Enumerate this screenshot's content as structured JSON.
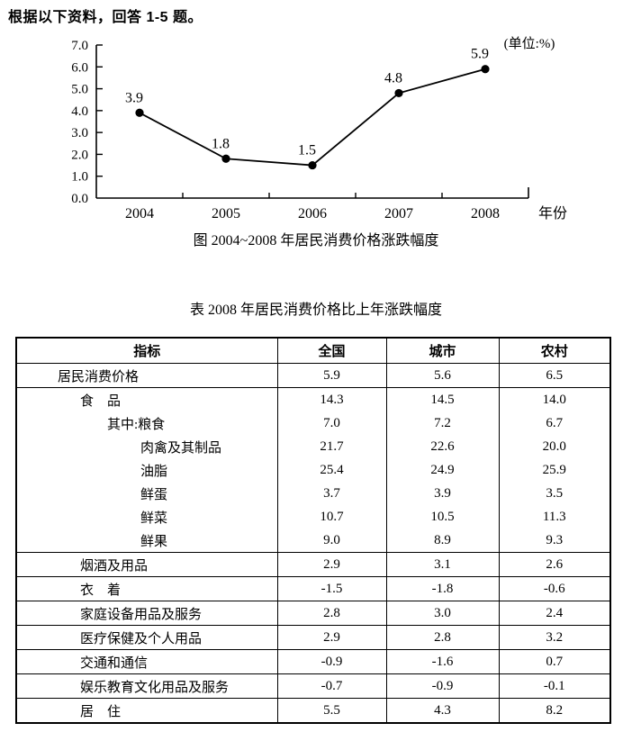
{
  "page": {
    "instruction": "根据以下资料，回答 1-5 题。"
  },
  "figure": {
    "caption": "图 2004~2008 年居民消费价格涨跌幅度"
  },
  "chart_data": {
    "type": "line",
    "title": "图 2004~2008 年居民消费价格涨跌幅度",
    "unit_label": "(单位:%)",
    "categories": [
      "2004",
      "2005",
      "2006",
      "2007",
      "2008"
    ],
    "series": [
      {
        "name": "居民消费价格涨跌幅度",
        "values": [
          3.9,
          1.8,
          1.5,
          4.8,
          5.9
        ]
      }
    ],
    "point_labels": [
      "3.9",
      "1.8",
      "1.5",
      "4.8",
      "5.9"
    ],
    "xlabel": "年份",
    "ylabel": "",
    "ylim": [
      0.0,
      7.0
    ],
    "ytick_step": 1.0,
    "ytick_labels": [
      "0.0",
      "1.0",
      "2.0",
      "3.0",
      "4.0",
      "5.0",
      "6.0",
      "7.0"
    ],
    "grid": false,
    "legend_position": "none",
    "line_color": "#000000",
    "marker": "filled-circle"
  },
  "table": {
    "title": "表 2008 年居民消费价格比上年涨跌幅度",
    "columns": [
      "指标",
      "全国",
      "城市",
      "农村"
    ],
    "rows": [
      {
        "label": "居民消费价格",
        "indent": 1,
        "divider": true,
        "values": [
          "5.9",
          "5.6",
          "6.5"
        ]
      },
      {
        "label": "食　品",
        "indent": 2,
        "divider": true,
        "values": [
          "14.3",
          "14.5",
          "14.0"
        ]
      },
      {
        "label": "其中:粮食",
        "indent": 3,
        "divider": false,
        "values": [
          "7.0",
          "7.2",
          "6.7"
        ]
      },
      {
        "label": "肉禽及其制品",
        "indent": 4,
        "divider": false,
        "values": [
          "21.7",
          "22.6",
          "20.0"
        ]
      },
      {
        "label": "油脂",
        "indent": 4,
        "divider": false,
        "values": [
          "25.4",
          "24.9",
          "25.9"
        ]
      },
      {
        "label": "鲜蛋",
        "indent": 4,
        "divider": false,
        "values": [
          "3.7",
          "3.9",
          "3.5"
        ]
      },
      {
        "label": "鲜菜",
        "indent": 4,
        "divider": false,
        "values": [
          "10.7",
          "10.5",
          "11.3"
        ]
      },
      {
        "label": "鲜果",
        "indent": 4,
        "divider": false,
        "values": [
          "9.0",
          "8.9",
          "9.3"
        ]
      },
      {
        "label": "烟酒及用品",
        "indent": 2,
        "divider": true,
        "values": [
          "2.9",
          "3.1",
          "2.6"
        ]
      },
      {
        "label": "衣　着",
        "indent": 2,
        "divider": true,
        "values": [
          "-1.5",
          "-1.8",
          "-0.6"
        ]
      },
      {
        "label": "家庭设备用品及服务",
        "indent": 2,
        "divider": true,
        "values": [
          "2.8",
          "3.0",
          "2.4"
        ]
      },
      {
        "label": "医疗保健及个人用品",
        "indent": 2,
        "divider": true,
        "values": [
          "2.9",
          "2.8",
          "3.2"
        ]
      },
      {
        "label": "交通和通信",
        "indent": 2,
        "divider": true,
        "values": [
          "-0.9",
          "-1.6",
          "0.7"
        ]
      },
      {
        "label": "娱乐教育文化用品及服务",
        "indent": 2,
        "divider": true,
        "values": [
          "-0.7",
          "-0.9",
          "-0.1"
        ]
      },
      {
        "label": "居　住",
        "indent": 2,
        "divider": true,
        "values": [
          "5.5",
          "4.3",
          "8.2"
        ]
      }
    ]
  }
}
